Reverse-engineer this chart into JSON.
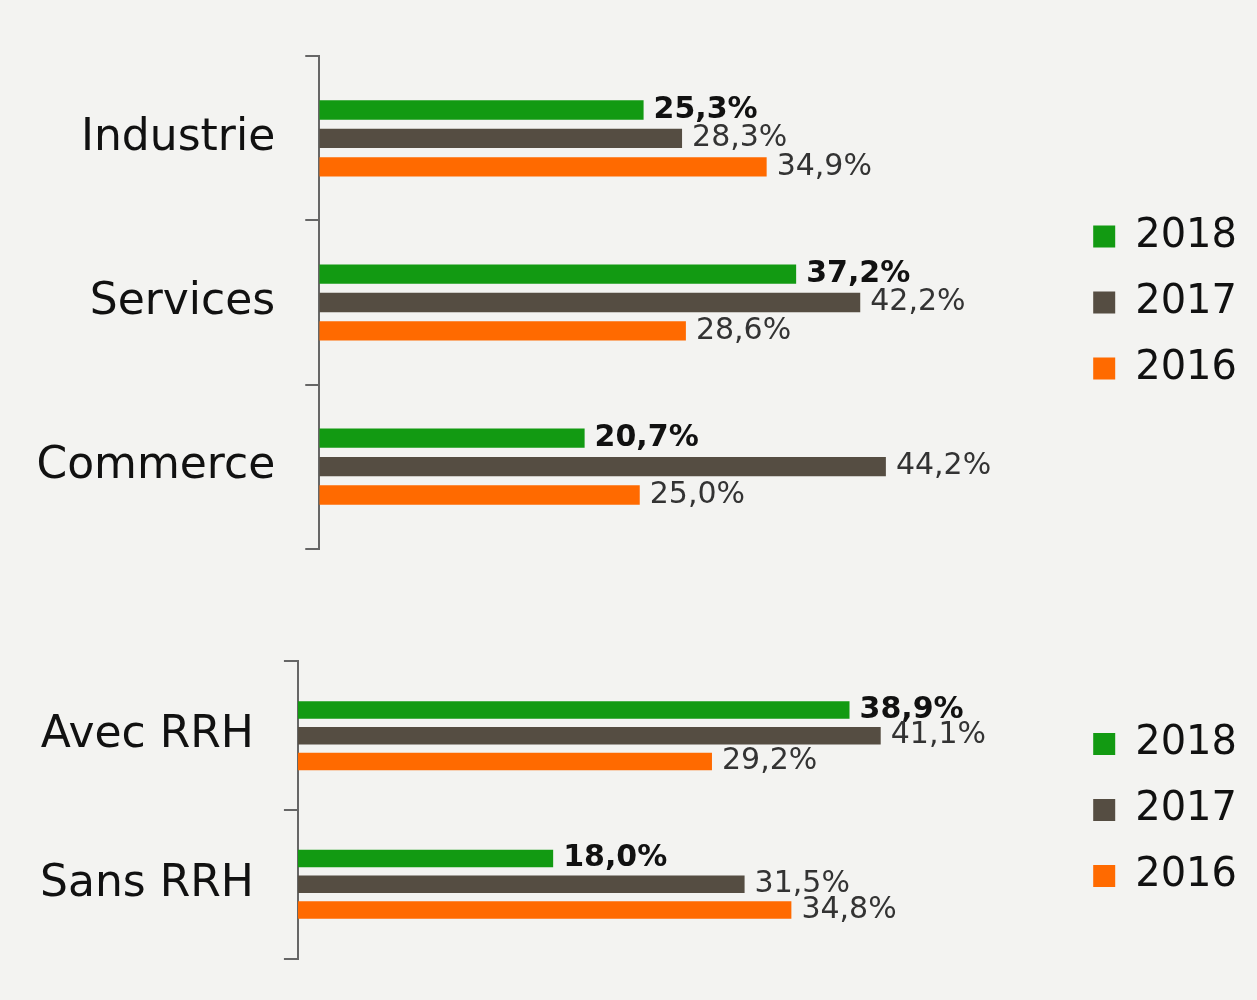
{
  "chart_data": [
    {
      "type": "bar",
      "orientation": "horizontal",
      "categories": [
        "Industrie",
        "Services",
        "Commerce"
      ],
      "legend": "right",
      "grid": false,
      "tick_labels": "y",
      "series": [
        {
          "name": "2018",
          "color": "#129a12",
          "values": [
            25.3,
            37.2,
            20.7
          ],
          "value_labels": [
            "25,3%",
            "37,2%",
            "20,7%"
          ]
        },
        {
          "name": "2017",
          "color": "#554d42",
          "values": [
            28.3,
            42.2,
            44.2
          ],
          "value_labels": [
            "28,3%",
            "42,2%",
            "44,2%"
          ]
        },
        {
          "name": "2016",
          "color": "#ff6a00",
          "values": [
            34.9,
            28.6,
            25.0
          ],
          "value_labels": [
            "34,9%",
            "28,6%",
            "25,0%"
          ]
        }
      ]
    },
    {
      "type": "bar",
      "orientation": "horizontal",
      "categories": [
        "Avec RRH",
        "Sans RRH"
      ],
      "legend": "right",
      "grid": false,
      "tick_labels": "y",
      "series": [
        {
          "name": "2018",
          "color": "#129a12",
          "values": [
            38.9,
            18.0
          ],
          "value_labels": [
            "38,9%",
            "18,0%"
          ]
        },
        {
          "name": "2017",
          "color": "#554d42",
          "values": [
            41.1,
            31.5
          ],
          "value_labels": [
            "41,1%",
            "31,5%"
          ]
        },
        {
          "name": "2016",
          "color": "#ff6a00",
          "values": [
            29.2,
            34.8
          ],
          "value_labels": [
            "29,2%",
            "34,8%"
          ]
        }
      ]
    }
  ]
}
